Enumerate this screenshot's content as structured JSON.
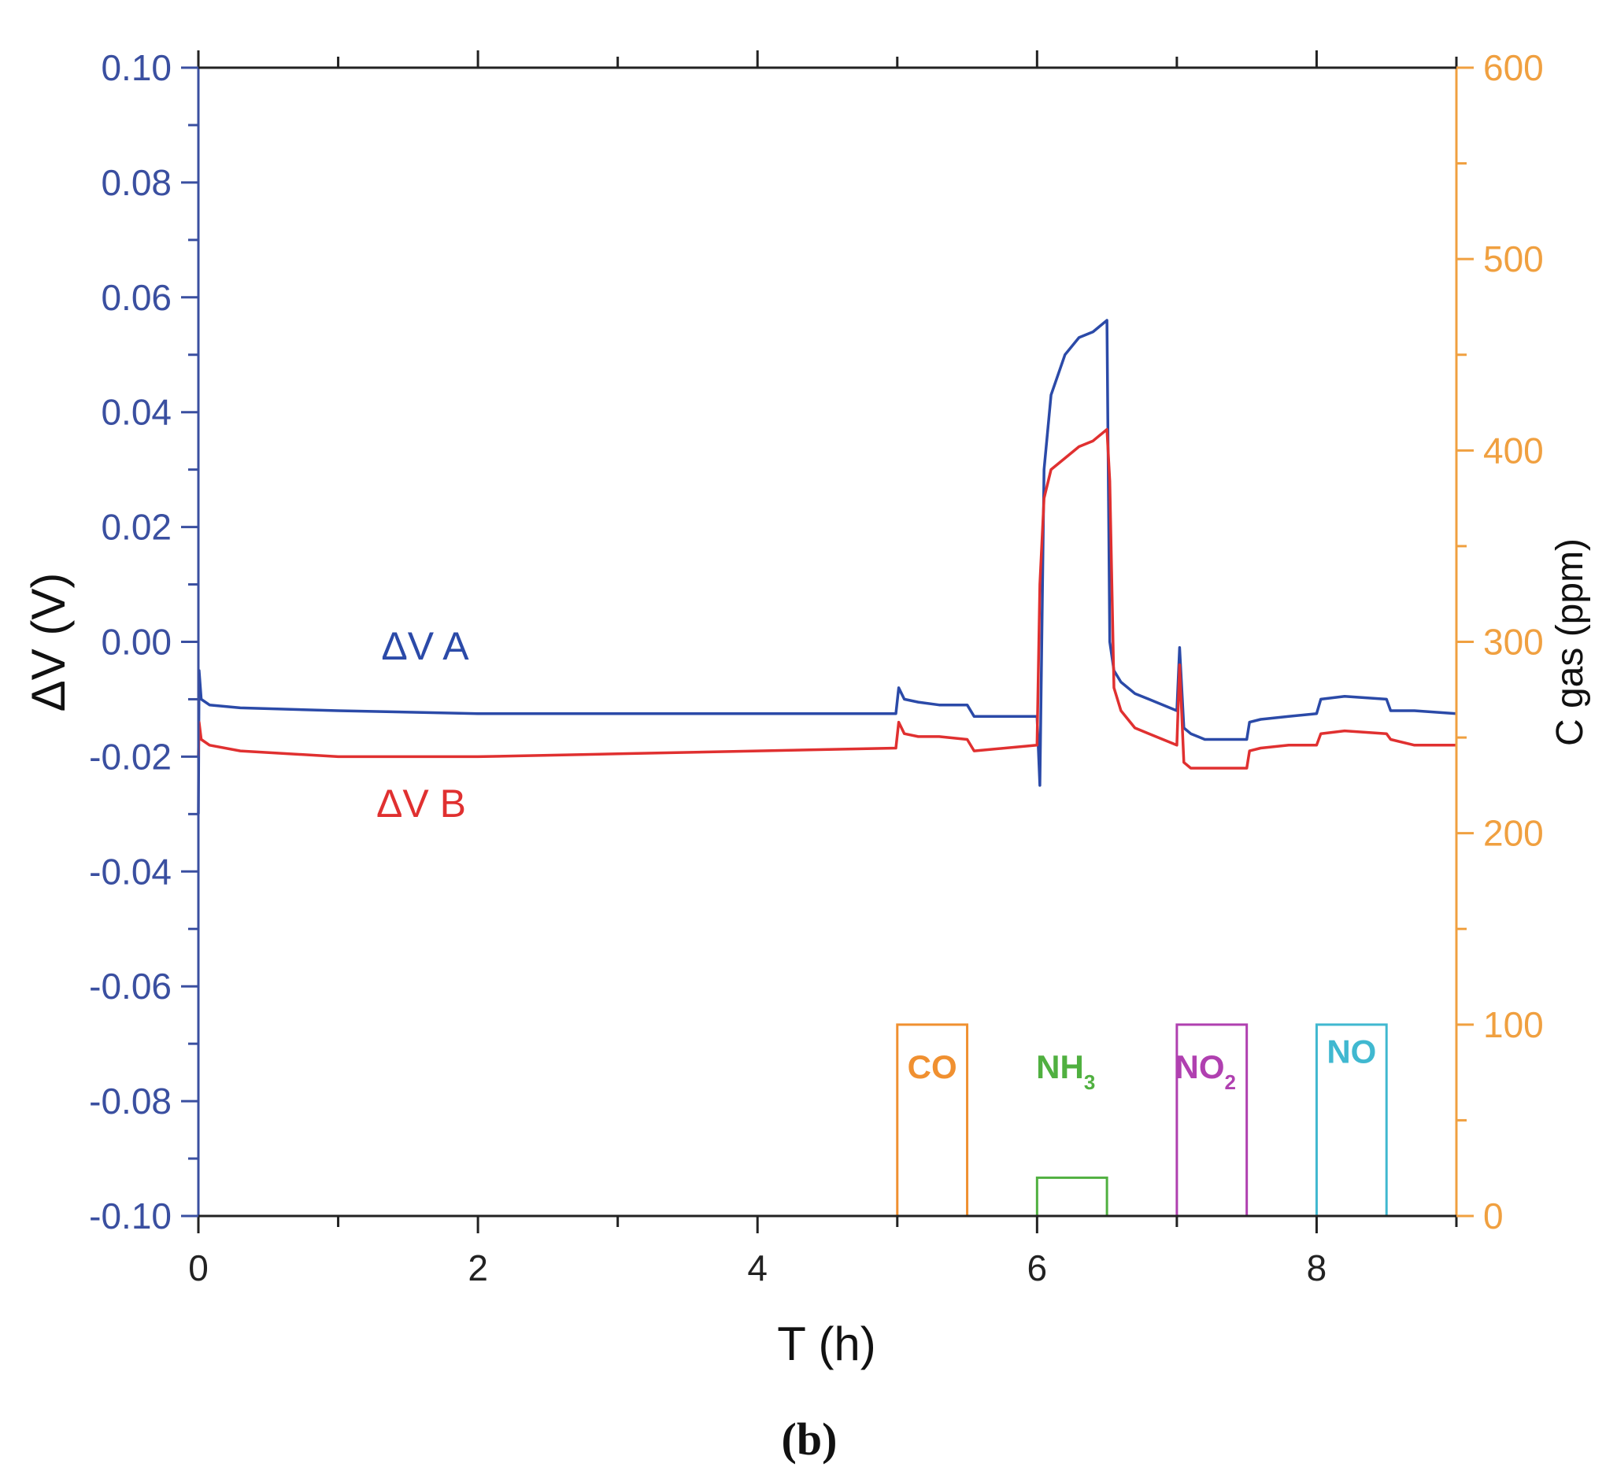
{
  "chart_data": {
    "type": "line",
    "caption": "(b)",
    "xlabel": "T (h)",
    "ylabel_left": "ΔV (V)",
    "ylabel_right": "C gas (ppm)",
    "xlim": [
      0,
      9
    ],
    "ylim_left": [
      -0.1,
      0.1
    ],
    "ylim_right": [
      0,
      600
    ],
    "x_ticks": [
      "0",
      "2",
      "4",
      "6",
      "8"
    ],
    "x_tick_values": [
      0,
      2,
      4,
      6,
      8
    ],
    "y_left_ticks": [
      "0.10",
      "0.08",
      "0.06",
      "0.04",
      "0.02",
      "0.00",
      "-0.02",
      "-0.04",
      "-0.06",
      "-0.08",
      "-0.10"
    ],
    "y_left_tick_values": [
      0.1,
      0.08,
      0.06,
      0.04,
      0.02,
      0.0,
      -0.02,
      -0.04,
      -0.06,
      -0.08,
      -0.1
    ],
    "y_right_ticks": [
      "600",
      "500",
      "400",
      "300",
      "200",
      "100",
      "0"
    ],
    "y_right_tick_values": [
      600,
      500,
      400,
      300,
      200,
      100,
      0
    ],
    "colors": {
      "left_axis": "#3a4fa0",
      "right_axis": "#f0a040",
      "dvA": "#2b4aa8",
      "dvB": "#e03030",
      "CO": "#f09030",
      "NH3": "#50b040",
      "NO2": "#b040b0",
      "NO": "#40b8d0",
      "axis_title": "#111111"
    },
    "series": [
      {
        "name": "ΔV A",
        "axis": "left",
        "color": "#2b4aa8",
        "x": [
          0,
          0.005,
          0.02,
          0.08,
          0.3,
          1,
          2,
          3,
          4,
          4.99,
          5.01,
          5.05,
          5.15,
          5.3,
          5.5,
          5.55,
          6.0,
          6.02,
          6.05,
          6.1,
          6.2,
          6.3,
          6.4,
          6.5,
          6.52,
          6.55,
          6.6,
          6.7,
          6.8,
          7.0,
          7.02,
          7.05,
          7.1,
          7.2,
          7.5,
          7.52,
          7.6,
          7.8,
          8.0,
          8.03,
          8.2,
          8.5,
          8.53,
          8.7,
          9.0
        ],
        "y": [
          -0.03,
          -0.005,
          -0.01,
          -0.011,
          -0.0115,
          -0.012,
          -0.0125,
          -0.0125,
          -0.0125,
          -0.0125,
          -0.008,
          -0.01,
          -0.0105,
          -0.011,
          -0.011,
          -0.013,
          -0.013,
          -0.025,
          0.03,
          0.043,
          0.05,
          0.053,
          0.054,
          0.056,
          0.0,
          -0.005,
          -0.007,
          -0.009,
          -0.01,
          -0.012,
          -0.001,
          -0.015,
          -0.016,
          -0.017,
          -0.017,
          -0.014,
          -0.0135,
          -0.013,
          -0.0125,
          -0.01,
          -0.0095,
          -0.01,
          -0.012,
          -0.012,
          -0.0125
        ]
      },
      {
        "name": "ΔV B",
        "axis": "left",
        "color": "#e03030",
        "x": [
          0,
          0.005,
          0.02,
          0.08,
          0.3,
          1,
          2,
          3,
          4,
          4.99,
          5.01,
          5.05,
          5.15,
          5.3,
          5.5,
          5.55,
          6.0,
          6.02,
          6.05,
          6.1,
          6.2,
          6.3,
          6.4,
          6.5,
          6.52,
          6.55,
          6.6,
          6.7,
          6.8,
          7.0,
          7.02,
          7.05,
          7.1,
          7.2,
          7.5,
          7.52,
          7.6,
          7.8,
          8.0,
          8.03,
          8.2,
          8.5,
          8.53,
          8.7,
          9.0
        ],
        "y": [
          -0.02,
          -0.014,
          -0.017,
          -0.018,
          -0.019,
          -0.02,
          -0.02,
          -0.0195,
          -0.019,
          -0.0185,
          -0.014,
          -0.016,
          -0.0165,
          -0.0165,
          -0.017,
          -0.019,
          -0.018,
          0.01,
          0.025,
          0.03,
          0.032,
          0.034,
          0.035,
          0.037,
          0.028,
          -0.008,
          -0.012,
          -0.015,
          -0.016,
          -0.018,
          -0.004,
          -0.021,
          -0.022,
          -0.022,
          -0.022,
          -0.019,
          -0.0185,
          -0.018,
          -0.018,
          -0.016,
          -0.0155,
          -0.016,
          -0.017,
          -0.018,
          -0.018
        ]
      }
    ],
    "gas_pulses": [
      {
        "name": "CO",
        "label": "CO",
        "sub": "",
        "color": "#f09030",
        "start": 5.0,
        "end": 5.5,
        "ppm": 100
      },
      {
        "name": "NH3",
        "label": "NH",
        "sub": "3",
        "color": "#50b040",
        "start": 6.0,
        "end": 6.5,
        "ppm": 20
      },
      {
        "name": "NO2",
        "label": "NO",
        "sub": "2",
        "color": "#b040b0",
        "start": 7.0,
        "end": 7.5,
        "ppm": 100
      },
      {
        "name": "NO",
        "label": "NO",
        "sub": "",
        "color": "#40b8d0",
        "start": 8.0,
        "end": 8.5,
        "ppm": 100
      }
    ]
  }
}
